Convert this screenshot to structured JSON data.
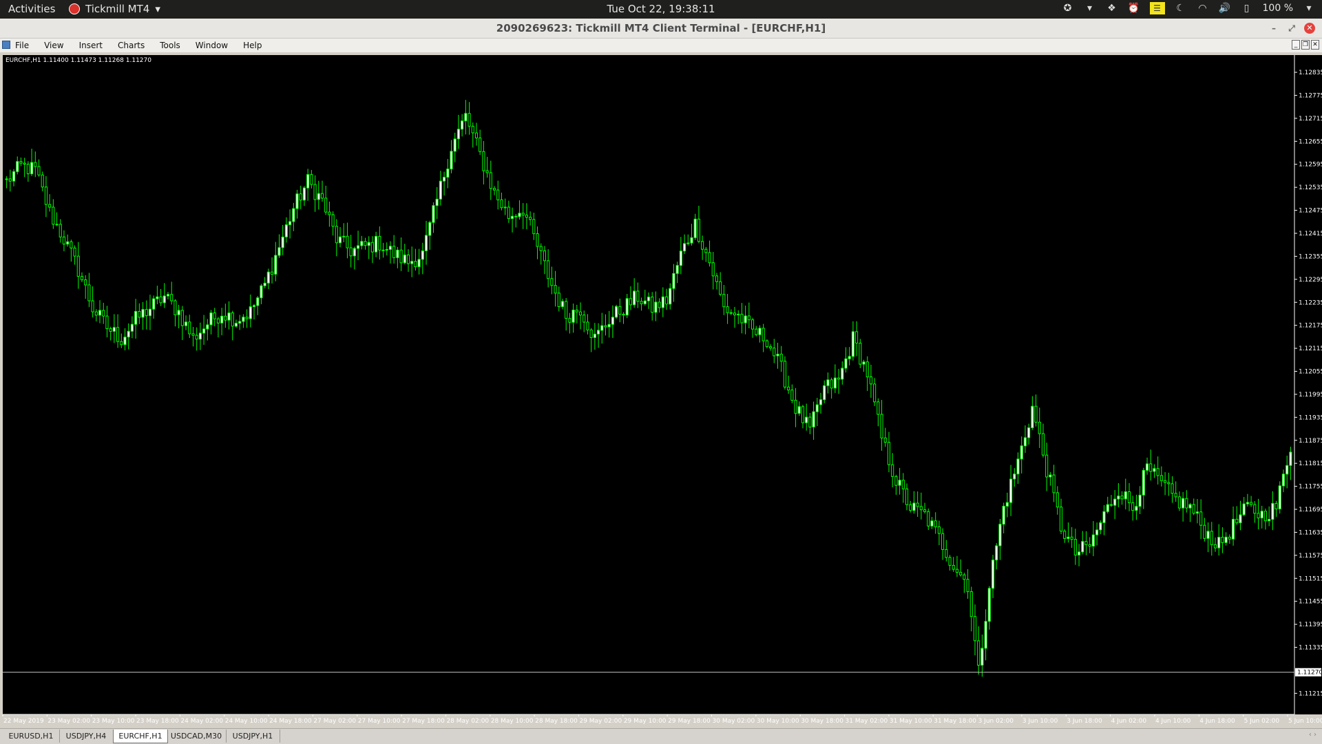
{
  "system": {
    "activities": "Activities",
    "app_name": "Tickmill MT4",
    "clock": "Tue Oct 22, 19:38:11",
    "battery": "100 %"
  },
  "window": {
    "title": "2090269623: Tickmill MT4 Client Terminal - [EURCHF,H1]"
  },
  "menu": [
    "File",
    "View",
    "Insert",
    "Charts",
    "Tools",
    "Window",
    "Help"
  ],
  "tabs": [
    {
      "label": "EURUSD,H1",
      "active": false
    },
    {
      "label": "USDJPY,H4",
      "active": false
    },
    {
      "label": "EURCHF,H1",
      "active": true
    },
    {
      "label": "USDCAD,M30",
      "active": false
    },
    {
      "label": "USDJPY,H1",
      "active": false
    }
  ],
  "chart_data": {
    "type": "candlestick",
    "symbol_header": "EURCHF,H1  1.11400 1.11473 1.11268 1.11270",
    "current_price": 1.1127,
    "current_price_label": "1.11270",
    "ylim": [
      1.1116,
      1.1288
    ],
    "y_ticks": [
      "1.12835",
      "1.12775",
      "1.12715",
      "1.12655",
      "1.12595",
      "1.12535",
      "1.12475",
      "1.12415",
      "1.12355",
      "1.12295",
      "1.12235",
      "1.12175",
      "1.12115",
      "1.12055",
      "1.11995",
      "1.11935",
      "1.11875",
      "1.11815",
      "1.11755",
      "1.11695",
      "1.11635",
      "1.11575",
      "1.11515",
      "1.11455",
      "1.11395",
      "1.11335",
      "1.11215"
    ],
    "x_labels": [
      "22 May 2019",
      "23 May 02:00",
      "23 May 10:00",
      "23 May 18:00",
      "24 May 02:00",
      "24 May 10:00",
      "24 May 18:00",
      "27 May 02:00",
      "27 May 10:00",
      "27 May 18:00",
      "28 May 02:00",
      "28 May 10:00",
      "28 May 18:00",
      "29 May 02:00",
      "29 May 10:00",
      "29 May 18:00",
      "30 May 02:00",
      "30 May 10:00",
      "30 May 18:00",
      "31 May 02:00",
      "31 May 10:00",
      "31 May 18:00",
      "3 Jun 02:00",
      "3 Jun 10:00",
      "3 Jun 18:00",
      "4 Jun 02:00",
      "4 Jun 10:00",
      "4 Jun 18:00",
      "5 Jun 02:00",
      "5 Jun 10:00"
    ],
    "bull_color": "#ffffff",
    "bear_color": "#000000",
    "wick_color": "#00ff00",
    "grid": false,
    "keypoints": [
      [
        0,
        1.1255
      ],
      [
        4,
        1.1259
      ],
      [
        8,
        1.1258
      ],
      [
        12,
        1.1247
      ],
      [
        16,
        1.124
      ],
      [
        20,
        1.1232
      ],
      [
        24,
        1.1222
      ],
      [
        28,
        1.1217
      ],
      [
        32,
        1.1214
      ],
      [
        36,
        1.1219
      ],
      [
        40,
        1.1222
      ],
      [
        44,
        1.1225
      ],
      [
        48,
        1.1221
      ],
      [
        52,
        1.1214
      ],
      [
        56,
        1.1218
      ],
      [
        60,
        1.1221
      ],
      [
        64,
        1.1219
      ],
      [
        68,
        1.1221
      ],
      [
        72,
        1.1228
      ],
      [
        76,
        1.1238
      ],
      [
        80,
        1.1248
      ],
      [
        84,
        1.1255
      ],
      [
        88,
        1.125
      ],
      [
        92,
        1.124
      ],
      [
        96,
        1.1237
      ],
      [
        100,
        1.1238
      ],
      [
        104,
        1.1239
      ],
      [
        108,
        1.1236
      ],
      [
        112,
        1.1234
      ],
      [
        116,
        1.1236
      ],
      [
        120,
        1.125
      ],
      [
        124,
        1.1264
      ],
      [
        128,
        1.1272
      ],
      [
        132,
        1.1262
      ],
      [
        136,
        1.1252
      ],
      [
        140,
        1.1246
      ],
      [
        144,
        1.1248
      ],
      [
        148,
        1.1238
      ],
      [
        152,
        1.1228
      ],
      [
        156,
        1.122
      ],
      [
        160,
        1.1222
      ],
      [
        164,
        1.1214
      ],
      [
        168,
        1.1219
      ],
      [
        172,
        1.1222
      ],
      [
        176,
        1.1225
      ],
      [
        180,
        1.1222
      ],
      [
        184,
        1.1224
      ],
      [
        188,
        1.1236
      ],
      [
        192,
        1.1244
      ],
      [
        196,
        1.1234
      ],
      [
        200,
        1.1222
      ],
      [
        204,
        1.122
      ],
      [
        208,
        1.1216
      ],
      [
        212,
        1.1214
      ],
      [
        216,
        1.1206
      ],
      [
        220,
        1.1196
      ],
      [
        224,
        1.119
      ],
      [
        228,
        1.1201
      ],
      [
        232,
        1.1203
      ],
      [
        236,
        1.1214
      ],
      [
        240,
        1.1205
      ],
      [
        244,
        1.1188
      ],
      [
        248,
        1.1177
      ],
      [
        252,
        1.117
      ],
      [
        256,
        1.1168
      ],
      [
        260,
        1.1162
      ],
      [
        264,
        1.1155
      ],
      [
        268,
        1.115
      ],
      [
        271,
        1.1127
      ],
      [
        274,
        1.115
      ],
      [
        278,
        1.117
      ],
      [
        282,
        1.1182
      ],
      [
        286,
        1.1196
      ],
      [
        290,
        1.118
      ],
      [
        294,
        1.1165
      ],
      [
        298,
        1.1158
      ],
      [
        302,
        1.116
      ],
      [
        306,
        1.1168
      ],
      [
        310,
        1.1175
      ],
      [
        314,
        1.117
      ],
      [
        318,
        1.118
      ],
      [
        322,
        1.1176
      ],
      [
        326,
        1.1172
      ],
      [
        330,
        1.117
      ],
      [
        334,
        1.1164
      ],
      [
        338,
        1.116
      ],
      [
        342,
        1.1165
      ],
      [
        346,
        1.117
      ],
      [
        350,
        1.1168
      ],
      [
        354,
        1.117
      ],
      [
        358,
        1.1186
      ]
    ]
  }
}
